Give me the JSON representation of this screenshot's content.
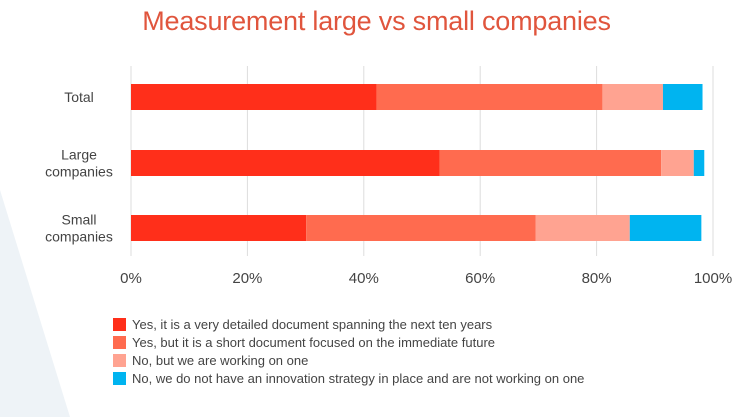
{
  "colors": {
    "title": "#e0553d",
    "series": [
      "#ff2f1a",
      "#ff6b4f",
      "#ffa391",
      "#00b4f0"
    ],
    "text": "#444444",
    "grid": "#dddddd",
    "background_accent": "#eef3f7"
  },
  "chart_data": {
    "type": "bar",
    "orientation": "horizontal",
    "stacked": true,
    "title": "Measurement large vs small companies",
    "categories": [
      "Total",
      "Large companies",
      "Small companies"
    ],
    "category_lines": [
      [
        "Total"
      ],
      [
        "Large",
        "companies"
      ],
      [
        "Small",
        "companies"
      ]
    ],
    "series": [
      {
        "name": "Yes, it is a very detailed document spanning the next ten years",
        "values": [
          42.2,
          53.0,
          30.1
        ]
      },
      {
        "name": "Yes, but it is a short document focused on the immediate future",
        "values": [
          38.8,
          38.1,
          39.4
        ]
      },
      {
        "name": "No, but we are working on one",
        "values": [
          10.4,
          5.6,
          16.2
        ]
      },
      {
        "name": "No, we do not have an innovation strategy in place and are not working on one",
        "values": [
          6.8,
          1.8,
          12.3
        ]
      }
    ],
    "xlim": [
      0,
      100
    ],
    "x_ticks": [
      "0%",
      "20%",
      "40%",
      "60%",
      "80%",
      "100%"
    ],
    "grid": true,
    "legend_position": "bottom-left"
  }
}
